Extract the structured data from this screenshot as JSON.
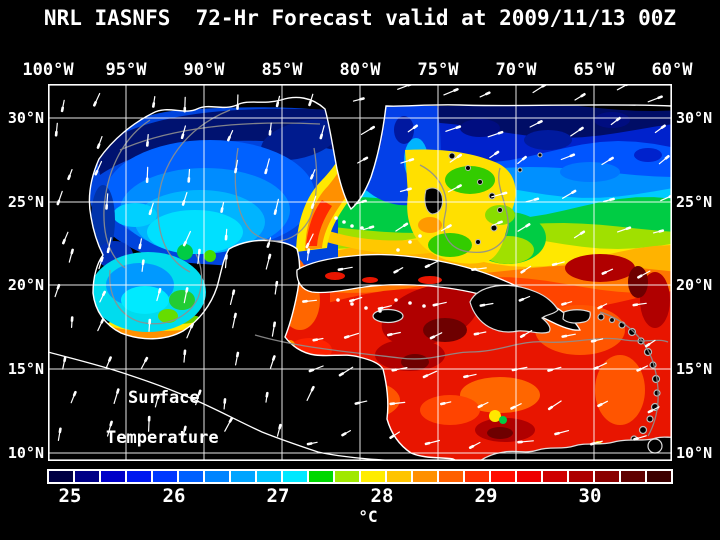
{
  "title": "NRL IASNFS  72-Hr Forecast valid at 2009/11/13 00Z",
  "map": {
    "lon_labels": [
      "100°W",
      "95°W",
      "90°W",
      "85°W",
      "80°W",
      "75°W",
      "70°W",
      "65°W",
      "60°W"
    ],
    "lat_labels": [
      "30°N",
      "25°N",
      "20°N",
      "15°N",
      "10°N"
    ],
    "annotation": {
      "line1": "Surface",
      "line2": "Temperature"
    }
  },
  "colorbar": {
    "tick_labels": [
      "25",
      "26",
      "27",
      "28",
      "29",
      "30"
    ],
    "unit": "°C",
    "segment_colors": [
      "#000042",
      "#000086",
      "#0000c8",
      "#0018f0",
      "#0038ff",
      "#0060ff",
      "#0084ff",
      "#00a4ff",
      "#00c4ff",
      "#00e8ff",
      "#00d800",
      "#a0e800",
      "#ffec00",
      "#ffc400",
      "#ff9000",
      "#ff6000",
      "#ff3000",
      "#ff0c00",
      "#ee0000",
      "#cf0000",
      "#ad0000",
      "#8a0000",
      "#600000",
      "#3c0000"
    ]
  },
  "chart_data": {
    "type": "heatmap",
    "title": "NRL IASNFS 72-Hr Forecast valid at 2009/11/13 00Z",
    "variable": "Surface Temperature",
    "unit": "°C",
    "colorbar_ticks": [
      25,
      26,
      27,
      28,
      29,
      30
    ],
    "colorbar_range": [
      24.75,
      30.75
    ],
    "lon_ticks_deg_w": [
      100,
      95,
      90,
      85,
      80,
      75,
      70,
      65,
      60
    ],
    "lat_ticks_deg_n": [
      30,
      25,
      20,
      15,
      10
    ],
    "grid": true,
    "region_values_c": {
      "gulf_of_mexico": 26.0,
      "northeast_atlantic_band": 25.0,
      "bahamas_banks": 27.5,
      "gulf_stream_loop_current": 28.0,
      "caribbean_sea": 29.5,
      "south_of_hispaniola_max": 30.5
    }
  }
}
